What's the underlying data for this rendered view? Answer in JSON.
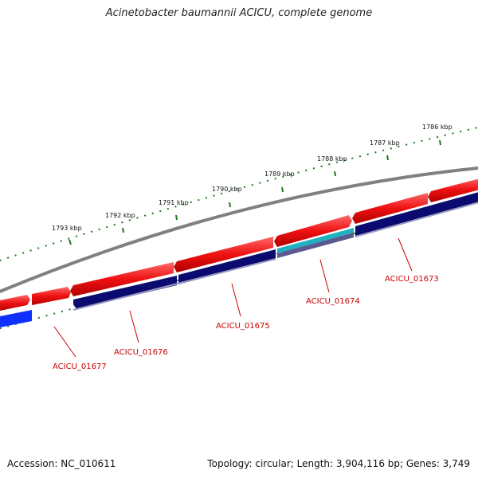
{
  "title": "Acinetobacter baumannii ACICU, complete genome",
  "footer": {
    "accession": "Accession: NC_010611",
    "topology": "Topology: circular; Length: 3,904,116 bp; Genes: 3,749"
  },
  "kbp_labels": [
    "1793 kbp",
    "1792 kbp",
    "1791 kbp",
    "1790 kbp",
    "1789 kbp",
    "1788 kbp",
    "1787 kbp",
    "1786 kbp"
  ],
  "gene_labels": [
    "ACICU_01673",
    "ACICU_01674",
    "ACICU_01675",
    "ACICU_01676",
    "ACICU_01677"
  ],
  "colors": {
    "forward_cds": "#ee1111",
    "reverse_cds": "#0a0a70",
    "reverse_blue": "#1030ff",
    "teal": "#20b0c0",
    "backbone": "#888888",
    "tick": "#1d7a1d",
    "label": "#cc0000"
  }
}
